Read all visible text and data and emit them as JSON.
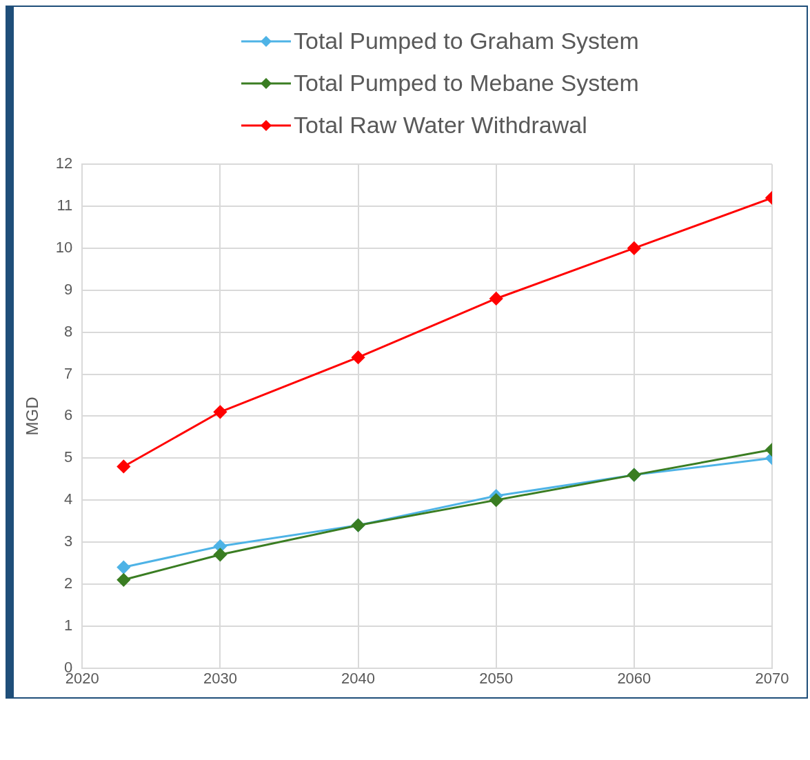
{
  "chart_data": {
    "type": "line",
    "ylabel": "MGD",
    "x": [
      2023,
      2030,
      2040,
      2050,
      2060,
      2070
    ],
    "series": [
      {
        "name": "Total Pumped to Graham System",
        "color": "#4eb3e6",
        "values": [
          2.4,
          2.9,
          3.4,
          4.1,
          4.6,
          5.0
        ]
      },
      {
        "name": "Total Pumped to Mebane System",
        "color": "#3a7d22",
        "values": [
          2.1,
          2.7,
          3.4,
          4.0,
          4.6,
          5.2
        ]
      },
      {
        "name": "Total Raw Water Withdrawal",
        "color": "#ff0000",
        "values": [
          4.8,
          6.1,
          7.4,
          8.8,
          10.0,
          11.2
        ]
      }
    ],
    "xlim": [
      2020,
      2070
    ],
    "xticks": [
      2020,
      2030,
      2040,
      2050,
      2060,
      2070
    ],
    "ylim": [
      0,
      12
    ],
    "yticks": [
      0,
      1,
      2,
      3,
      4,
      5,
      6,
      7,
      8,
      9,
      10,
      11,
      12
    ],
    "grid": true,
    "legend": "top",
    "marker": "diamond",
    "line_style": "solid"
  }
}
